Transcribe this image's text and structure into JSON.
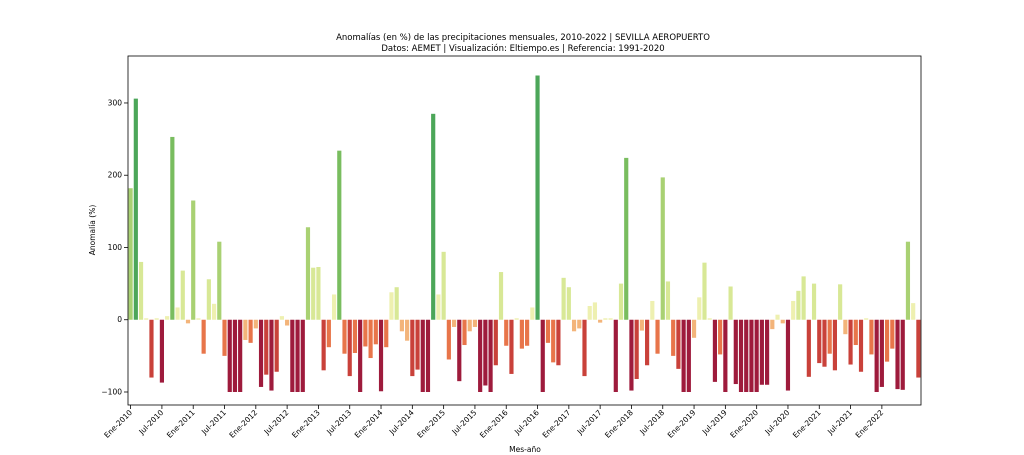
{
  "chart_data": {
    "type": "bar",
    "title": "Anomalías (en %) de las precipitaciones mensuales, 2010-2022 | SEVILLA AEROPUERTO",
    "subtitle": "Datos: AEMET | Visualización: Eltiempo.es | Referencia: 1991-2020",
    "xlabel": "Mes-año",
    "ylabel": "Anomalía (%)",
    "ylim": [
      -118,
      365
    ],
    "yticks": [
      -100,
      0,
      100,
      200,
      300
    ],
    "xtick_labels": [
      "Ene-2010",
      "Jul-2010",
      "Ene-2011",
      "Jul-2011",
      "Ene-2012",
      "Jul-2012",
      "Ene-2013",
      "Jul-2013",
      "Ene-2014",
      "Jul-2014",
      "Ene-2015",
      "Jul-2015",
      "Ene-2016",
      "Jul-2016",
      "Ene-2017",
      "Jul-2017",
      "Ene-2018",
      "Jul-2018",
      "Ene-2019",
      "Jul-2019",
      "Ene-2020",
      "Jul-2020",
      "Ene-2021",
      "Jul-2021",
      "Ene-2022"
    ],
    "start": "Ene-2010",
    "values": [
      182,
      306,
      80,
      2,
      -80,
      2,
      -87,
      5,
      253,
      17,
      68,
      -5,
      165,
      2,
      -47,
      56,
      22,
      108,
      -50,
      -100,
      -100,
      -100,
      -28,
      -32,
      -12,
      -93,
      -76,
      -98,
      -72,
      5,
      -8,
      -100,
      -100,
      -100,
      128,
      72,
      73,
      -70,
      -38,
      35,
      234,
      -47,
      -78,
      -46,
      -100,
      -37,
      -53,
      -34,
      -99,
      -38,
      38,
      45,
      -16,
      -29,
      -78,
      -69,
      -100,
      -100,
      285,
      35,
      94,
      -55,
      -10,
      -85,
      -35,
      -16,
      -10,
      -100,
      -91,
      -100,
      -63,
      66,
      -36,
      -75,
      2,
      -40,
      -36,
      17,
      338,
      -100,
      -32,
      -59,
      -63,
      58,
      45,
      -16,
      -12,
      -78,
      19,
      24,
      -4,
      2,
      2,
      -100,
      50,
      224,
      -98,
      -82,
      -15,
      -63,
      26,
      -47,
      197,
      53,
      -50,
      -68,
      -100,
      -100,
      -25,
      31,
      79,
      2,
      -86,
      -48,
      -100,
      46,
      -89,
      -100,
      -100,
      -100,
      -100,
      -90,
      -90,
      -13,
      7,
      -5,
      -98,
      26,
      40,
      60,
      -79,
      50,
      -60,
      -65,
      -47,
      -70,
      49,
      -20,
      -62,
      -35,
      -72,
      2,
      -48,
      -100,
      -93,
      -58,
      -40,
      -96,
      -97,
      108,
      23,
      -80
    ]
  }
}
